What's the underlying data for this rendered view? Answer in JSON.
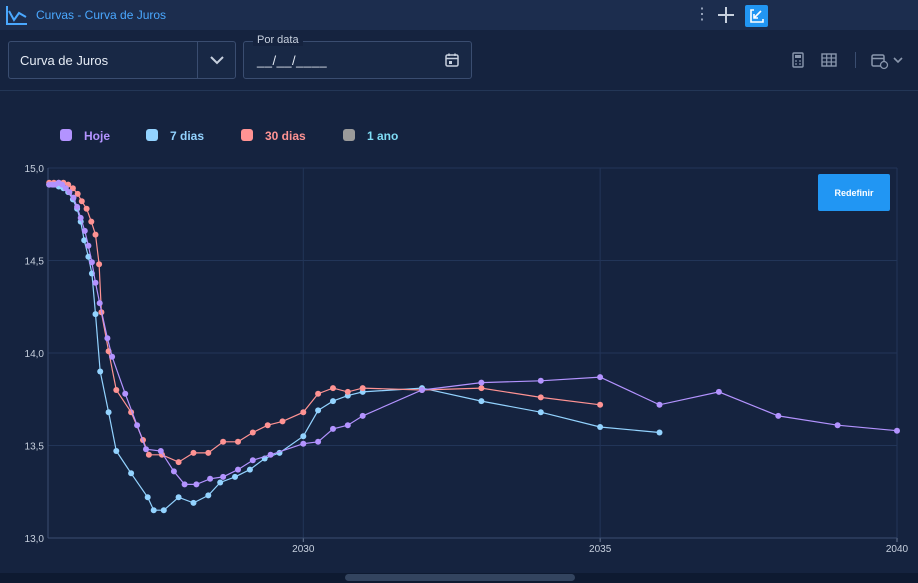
{
  "titlebar": {
    "title": "Curvas - Curva de Juros",
    "menu_glyph": "⋮"
  },
  "toolbar": {
    "curve_select_value": "Curva de Juros",
    "date_legend": "Por data",
    "date_value": "__/__/____",
    "icons": [
      "calculator-icon",
      "grid-icon",
      "calendar-settings-icon"
    ]
  },
  "reset_button_label": "Redefinir",
  "colors": {
    "hoje": "#b393ff",
    "sete_dias": "#93d3ff",
    "trinta_dias": "#ff9393",
    "um_ano": "#9a9a9a",
    "accent": "#2196f3"
  },
  "chart_data": {
    "type": "line",
    "title": "",
    "xlabel": "",
    "ylabel": "",
    "xlim": [
      2025.7,
      2040
    ],
    "ylim": [
      13.0,
      15.0
    ],
    "xticks": [
      "2030",
      "2035",
      "2040"
    ],
    "yticks": [
      "13,0",
      "13,5",
      "14,0",
      "14,5",
      "15,0"
    ],
    "grid": true,
    "legend_position": "top-left",
    "series": [
      {
        "name": "Hoje",
        "color": "#b393ff",
        "points": [
          [
            2025.72,
            14.91
          ],
          [
            2025.77,
            14.91
          ],
          [
            2025.82,
            14.91
          ],
          [
            2025.88,
            14.92
          ],
          [
            2025.94,
            14.91
          ],
          [
            2026.0,
            14.89
          ],
          [
            2026.06,
            14.87
          ],
          [
            2026.13,
            14.84
          ],
          [
            2026.19,
            14.79
          ],
          [
            2026.25,
            14.73
          ],
          [
            2026.32,
            14.66
          ],
          [
            2026.38,
            14.58
          ],
          [
            2026.44,
            14.49
          ],
          [
            2026.5,
            14.38
          ],
          [
            2026.57,
            14.27
          ],
          [
            2026.7,
            14.08
          ],
          [
            2026.78,
            13.98
          ],
          [
            2027.0,
            13.78
          ],
          [
            2027.2,
            13.61
          ],
          [
            2027.35,
            13.48
          ],
          [
            2027.6,
            13.47
          ],
          [
            2027.82,
            13.36
          ],
          [
            2028.0,
            13.29
          ],
          [
            2028.2,
            13.29
          ],
          [
            2028.43,
            13.32
          ],
          [
            2028.65,
            13.33
          ],
          [
            2028.9,
            13.37
          ],
          [
            2029.15,
            13.42
          ],
          [
            2029.45,
            13.45
          ],
          [
            2030.0,
            13.51
          ],
          [
            2030.25,
            13.52
          ],
          [
            2030.5,
            13.59
          ],
          [
            2030.75,
            13.61
          ],
          [
            2031.0,
            13.66
          ],
          [
            2032.0,
            13.8
          ],
          [
            2033.0,
            13.84
          ],
          [
            2034.0,
            13.85
          ],
          [
            2035.0,
            13.87
          ],
          [
            2036.0,
            13.72
          ],
          [
            2037.0,
            13.79
          ],
          [
            2038.0,
            13.66
          ],
          [
            2039.0,
            13.61
          ],
          [
            2040.0,
            13.58
          ]
        ]
      },
      {
        "name": "7 dias",
        "color": "#93d3ff",
        "points": [
          [
            2025.72,
            14.91
          ],
          [
            2025.8,
            14.91
          ],
          [
            2025.88,
            14.9
          ],
          [
            2025.96,
            14.89
          ],
          [
            2026.04,
            14.87
          ],
          [
            2026.12,
            14.83
          ],
          [
            2026.19,
            14.78
          ],
          [
            2026.25,
            14.71
          ],
          [
            2026.31,
            14.61
          ],
          [
            2026.38,
            14.52
          ],
          [
            2026.44,
            14.43
          ],
          [
            2026.5,
            14.21
          ],
          [
            2026.58,
            13.9
          ],
          [
            2026.72,
            13.68
          ],
          [
            2026.85,
            13.47
          ],
          [
            2027.1,
            13.35
          ],
          [
            2027.38,
            13.22
          ],
          [
            2027.48,
            13.15
          ],
          [
            2027.65,
            13.15
          ],
          [
            2027.9,
            13.22
          ],
          [
            2028.15,
            13.19
          ],
          [
            2028.4,
            13.23
          ],
          [
            2028.6,
            13.3
          ],
          [
            2028.85,
            13.33
          ],
          [
            2029.1,
            13.37
          ],
          [
            2029.35,
            13.43
          ],
          [
            2029.6,
            13.46
          ],
          [
            2030.0,
            13.55
          ],
          [
            2030.25,
            13.69
          ],
          [
            2030.5,
            13.74
          ],
          [
            2030.75,
            13.77
          ],
          [
            2031.0,
            13.79
          ],
          [
            2032.0,
            13.81
          ],
          [
            2033.0,
            13.74
          ],
          [
            2034.0,
            13.68
          ],
          [
            2035.0,
            13.6
          ],
          [
            2036.0,
            13.57
          ]
        ]
      },
      {
        "name": "30 dias",
        "color": "#ff9393",
        "points": [
          [
            2025.72,
            14.92
          ],
          [
            2025.8,
            14.92
          ],
          [
            2025.88,
            14.92
          ],
          [
            2025.96,
            14.92
          ],
          [
            2026.04,
            14.91
          ],
          [
            2026.12,
            14.89
          ],
          [
            2026.2,
            14.86
          ],
          [
            2026.27,
            14.82
          ],
          [
            2026.35,
            14.78
          ],
          [
            2026.43,
            14.71
          ],
          [
            2026.5,
            14.64
          ],
          [
            2026.56,
            14.48
          ],
          [
            2026.6,
            14.22
          ],
          [
            2026.72,
            14.01
          ],
          [
            2026.85,
            13.8
          ],
          [
            2027.1,
            13.68
          ],
          [
            2027.3,
            13.53
          ],
          [
            2027.4,
            13.45
          ],
          [
            2027.62,
            13.45
          ],
          [
            2027.9,
            13.41
          ],
          [
            2028.15,
            13.46
          ],
          [
            2028.4,
            13.46
          ],
          [
            2028.65,
            13.52
          ],
          [
            2028.9,
            13.52
          ],
          [
            2029.15,
            13.57
          ],
          [
            2029.4,
            13.61
          ],
          [
            2029.65,
            13.63
          ],
          [
            2030.0,
            13.68
          ],
          [
            2030.25,
            13.78
          ],
          [
            2030.5,
            13.81
          ],
          [
            2030.75,
            13.79
          ],
          [
            2031.0,
            13.81
          ],
          [
            2032.0,
            13.8
          ],
          [
            2033.0,
            13.81
          ],
          [
            2034.0,
            13.76
          ],
          [
            2035.0,
            13.72
          ]
        ]
      },
      {
        "name": "1 ano",
        "color": "#9a9a9a",
        "points": []
      }
    ]
  }
}
